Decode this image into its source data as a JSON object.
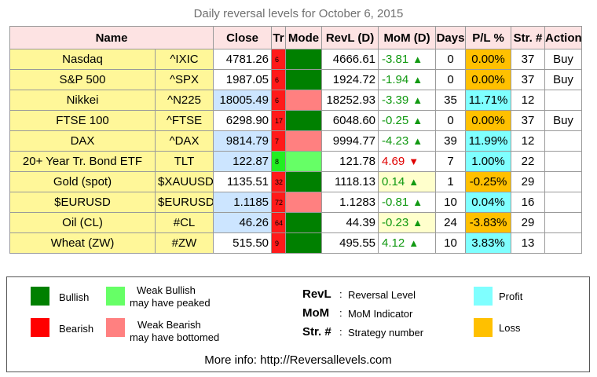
{
  "title": "Daily reversal levels for October 6, 2015",
  "headers": {
    "name": "Name",
    "close": "Close",
    "tr": "Tr",
    "mode": "Mode",
    "revl": "RevL (D)",
    "mom": "MoM (D)",
    "days": "Days",
    "pl": "P/L %",
    "str": "Str. #",
    "action": "Action"
  },
  "colors": {
    "bullish": "#008000",
    "weak_bullish": "#66ff66",
    "bearish": "#ff0000",
    "weak_bearish": "#ff8080",
    "profit": "#7fffff",
    "loss": "#ffc000",
    "trend_red": "#ff1a1a",
    "trend_green": "#22ee22",
    "mom_up": "#119911",
    "mom_down": "#e00000"
  },
  "rows": [
    {
      "name": "Nasdaq",
      "symbol": "^IXIC",
      "close": "4781.26",
      "close_hl": false,
      "tr": "6",
      "tr_color": "red",
      "mode": "bullish",
      "revl": "4666.61",
      "mom": "-3.81",
      "mom_dir": "up",
      "mom_hl": false,
      "days": "0",
      "pl": "0.00%",
      "pl_type": "loss",
      "str": "37",
      "action": "Buy"
    },
    {
      "name": "S&P 500",
      "symbol": "^SPX",
      "close": "1987.05",
      "close_hl": false,
      "tr": "6",
      "tr_color": "red",
      "mode": "bullish",
      "revl": "1924.72",
      "mom": "-1.94",
      "mom_dir": "up",
      "mom_hl": false,
      "days": "0",
      "pl": "0.00%",
      "pl_type": "loss",
      "str": "37",
      "action": "Buy"
    },
    {
      "name": "Nikkei",
      "symbol": "^N225",
      "close": "18005.49",
      "close_hl": true,
      "tr": "6",
      "tr_color": "red",
      "mode": "weak_bearish",
      "revl": "18252.93",
      "mom": "-3.39",
      "mom_dir": "up",
      "mom_hl": false,
      "days": "35",
      "pl": "11.71%",
      "pl_type": "profit",
      "str": "12",
      "action": ""
    },
    {
      "name": "FTSE 100",
      "symbol": "^FTSE",
      "close": "6298.90",
      "close_hl": false,
      "tr": "17",
      "tr_color": "red",
      "mode": "bullish",
      "revl": "6048.60",
      "mom": "-0.25",
      "mom_dir": "up",
      "mom_hl": false,
      "days": "0",
      "pl": "0.00%",
      "pl_type": "loss",
      "str": "37",
      "action": "Buy"
    },
    {
      "name": "DAX",
      "symbol": "^DAX",
      "close": "9814.79",
      "close_hl": true,
      "tr": "7",
      "tr_color": "red",
      "mode": "weak_bearish",
      "revl": "9994.77",
      "mom": "-4.23",
      "mom_dir": "up",
      "mom_hl": false,
      "days": "39",
      "pl": "11.99%",
      "pl_type": "profit",
      "str": "12",
      "action": ""
    },
    {
      "name": "20+ Year Tr. Bond ETF",
      "symbol": "TLT",
      "close": "122.87",
      "close_hl": true,
      "tr": "8",
      "tr_color": "green",
      "mode": "weak_bullish",
      "revl": "121.78",
      "mom": "4.69",
      "mom_dir": "down",
      "mom_hl": false,
      "days": "7",
      "pl": "1.00%",
      "pl_type": "profit",
      "str": "22",
      "action": ""
    },
    {
      "name": "Gold (spot)",
      "symbol": "$XAUUSD",
      "close": "1135.51",
      "close_hl": false,
      "tr": "32",
      "tr_color": "red",
      "mode": "bullish",
      "revl": "1118.13",
      "mom": "0.14",
      "mom_dir": "up",
      "mom_hl": true,
      "days": "1",
      "pl": "-0.25%",
      "pl_type": "loss",
      "str": "29",
      "action": ""
    },
    {
      "name": "$EURUSD",
      "symbol": "$EURUSD",
      "close": "1.1185",
      "close_hl": true,
      "tr": "72",
      "tr_color": "red",
      "mode": "weak_bearish",
      "revl": "1.1283",
      "mom": "-0.81",
      "mom_dir": "up",
      "mom_hl": false,
      "days": "10",
      "pl": "0.04%",
      "pl_type": "profit",
      "str": "16",
      "action": ""
    },
    {
      "name": "Oil (CL)",
      "symbol": "#CL",
      "close": "46.26",
      "close_hl": true,
      "tr": "64",
      "tr_color": "red",
      "mode": "bullish",
      "revl": "44.39",
      "mom": "-0.23",
      "mom_dir": "up",
      "mom_hl": true,
      "days": "24",
      "pl": "-3.83%",
      "pl_type": "loss",
      "str": "29",
      "action": ""
    },
    {
      "name": "Wheat (ZW)",
      "symbol": "#ZW",
      "close": "515.50",
      "close_hl": false,
      "tr": "9",
      "tr_color": "red",
      "mode": "bullish",
      "revl": "495.55",
      "mom": "4.12",
      "mom_dir": "up",
      "mom_hl": false,
      "days": "10",
      "pl": "3.83%",
      "pl_type": "profit",
      "str": "13",
      "action": ""
    }
  ],
  "legend": {
    "bullish": "Bullish",
    "weak_bullish_1": "Weak Bullish",
    "weak_bullish_2": "may have peaked",
    "bearish": "Bearish",
    "weak_bearish_1": "Weak Bearish",
    "weak_bearish_2": "may have bottomed",
    "revl_key": "RevL",
    "revl_desc": "Reversal Level",
    "mom_key": "MoM",
    "mom_desc": "MoM Indicator",
    "str_key": "Str. #",
    "str_desc": "Strategy number",
    "colon": ":",
    "profit": "Profit",
    "loss": "Loss",
    "more_info": "More info: http://Reversallevels.com"
  },
  "icons": {
    "up": "▲",
    "down": "▼"
  }
}
